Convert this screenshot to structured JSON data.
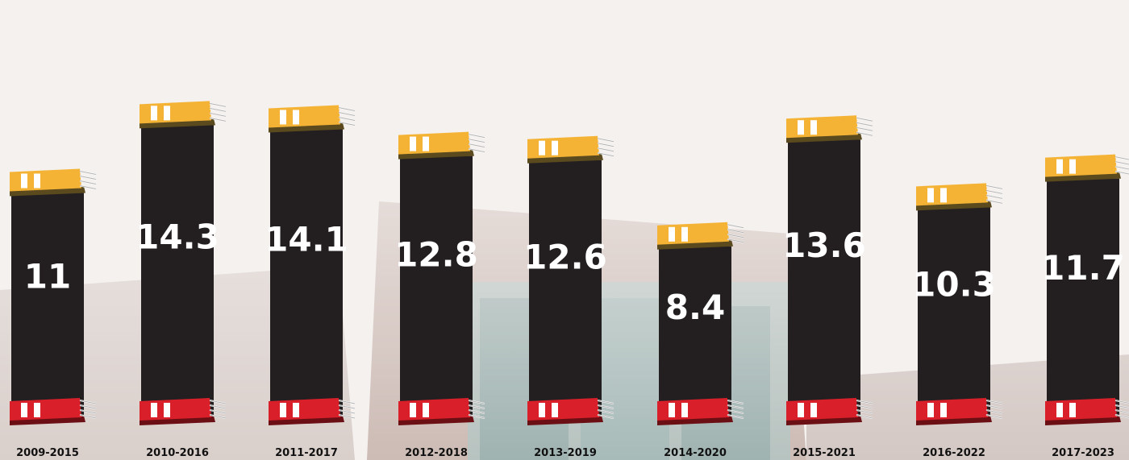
{
  "chart_data": {
    "type": "bar",
    "categories": [
      "2009-2015",
      "2010-2016",
      "2011-2017",
      "2012-2018",
      "2013-2019",
      "2014-2020",
      "2015-2021",
      "2016-2022",
      "2017-2023"
    ],
    "values": [
      11,
      14.3,
      14.1,
      12.8,
      12.6,
      8.4,
      13.6,
      10.3,
      11.7
    ],
    "value_labels": [
      "11",
      "14.3",
      "14.1",
      "12.8",
      "12.6",
      "8.4",
      "13.6",
      "10.3",
      "11.7"
    ],
    "title": "",
    "xlabel": "",
    "ylabel": "",
    "grid": false
  },
  "colors": {
    "bar": "#231f20",
    "top_book_cover": "#f5b335",
    "top_book_spine": "#5a4a1e",
    "bottom_book_cover": "#d9202a",
    "bottom_book_spine": "#6b0f14",
    "book_stripes": "#ffffff",
    "pages": "#ffffff",
    "label": "#111111",
    "value_text": "#ffffff"
  },
  "icons": {
    "top": "yellow-book-icon",
    "bottom": "red-book-icon"
  }
}
